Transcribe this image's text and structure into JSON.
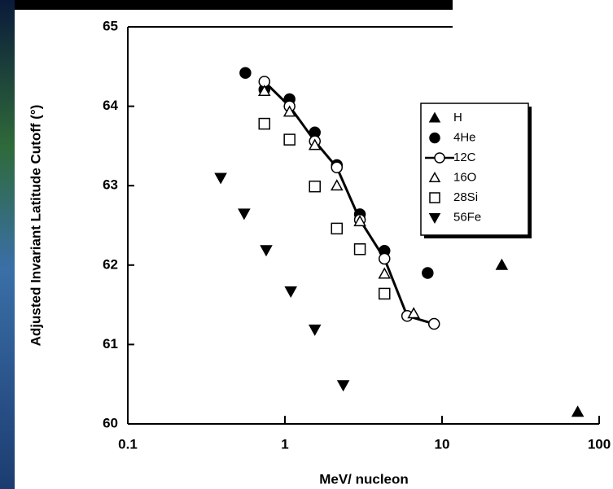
{
  "chart_data": {
    "type": "scatter",
    "x_label": "MeV/ nucleon",
    "y_label": "Adjusted Invariant Latitude Cutoff (°)",
    "x_scale": "log",
    "xlim": [
      0.1,
      100
    ],
    "xticks": [
      0.1,
      1,
      10,
      100
    ],
    "ylim": [
      60,
      65
    ],
    "yticks": [
      60,
      61,
      62,
      63,
      64,
      65
    ],
    "legend": "upper right",
    "series": [
      {
        "name": "H",
        "color": "#000000",
        "marker": "triangle-up",
        "filled": true,
        "line": false,
        "x": [
          24,
          73
        ],
        "values": [
          62.0,
          60.15
        ]
      },
      {
        "name": "4He",
        "color": "#000000",
        "marker": "circle",
        "filled": true,
        "line": false,
        "x": [
          0.56,
          0.74,
          1.07,
          1.55,
          2.14,
          3.0,
          4.3,
          8.1
        ],
        "values": [
          64.42,
          64.21,
          64.09,
          63.67,
          63.26,
          62.64,
          62.18,
          61.9
        ]
      },
      {
        "name": "12C",
        "color": "#000000",
        "marker": "circle",
        "filled": false,
        "line": true,
        "x": [
          0.74,
          1.07,
          1.55,
          2.14,
          3.0,
          4.3,
          6.0,
          8.9
        ],
        "values": [
          64.31,
          64.0,
          63.56,
          63.23,
          62.57,
          62.08,
          61.36,
          61.26
        ]
      },
      {
        "name": "16O",
        "color": "#000000",
        "marker": "triangle-up",
        "filled": false,
        "line": false,
        "x": [
          0.74,
          1.07,
          1.55,
          2.14,
          3.0,
          4.3,
          6.6
        ],
        "values": [
          64.19,
          63.93,
          63.51,
          63.0,
          62.55,
          61.89,
          61.39
        ]
      },
      {
        "name": "28Si",
        "color": "#000000",
        "marker": "square",
        "filled": false,
        "line": false,
        "x": [
          0.74,
          1.07,
          1.55,
          2.14,
          3.0,
          4.3
        ],
        "values": [
          63.78,
          63.58,
          62.99,
          62.46,
          62.2,
          61.64
        ]
      },
      {
        "name": "56Fe",
        "color": "#000000",
        "marker": "triangle-down",
        "filled": true,
        "line": false,
        "x": [
          0.39,
          0.55,
          0.76,
          1.09,
          1.55,
          2.35
        ],
        "values": [
          63.1,
          62.65,
          62.19,
          61.67,
          61.19,
          60.49
        ]
      }
    ]
  }
}
